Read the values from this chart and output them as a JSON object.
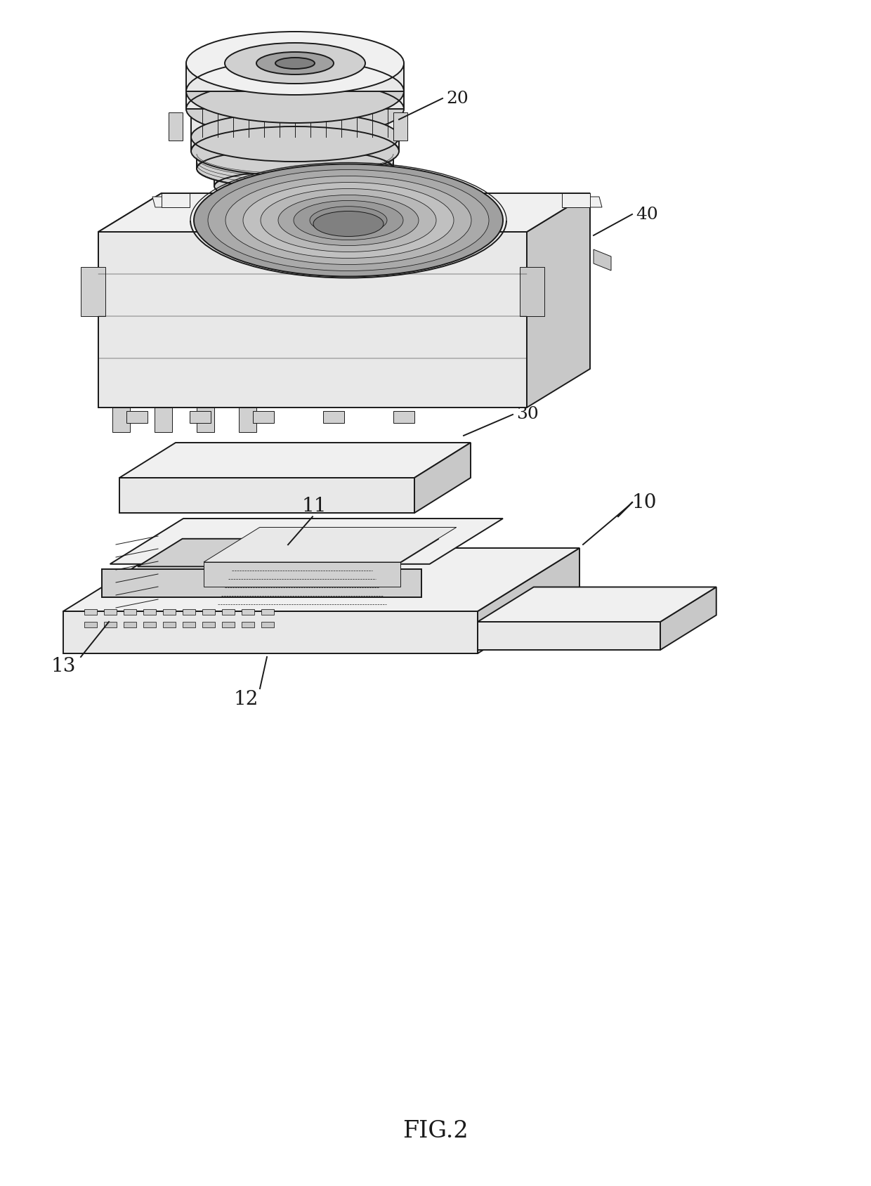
{
  "background_color": "#ffffff",
  "line_color": "#1a1a1a",
  "label_color": "#1a1a1a",
  "fig_label": "FIG.2",
  "lw_main": 1.4,
  "lw_thin": 0.7,
  "component_fills": {
    "light": "#e8e8e8",
    "mid": "#d0d0d0",
    "dark": "#b8b8b8",
    "top": "#f0f0f0",
    "side": "#c8c8c8",
    "inner": "#a0a0a0",
    "very_dark": "#808080"
  }
}
